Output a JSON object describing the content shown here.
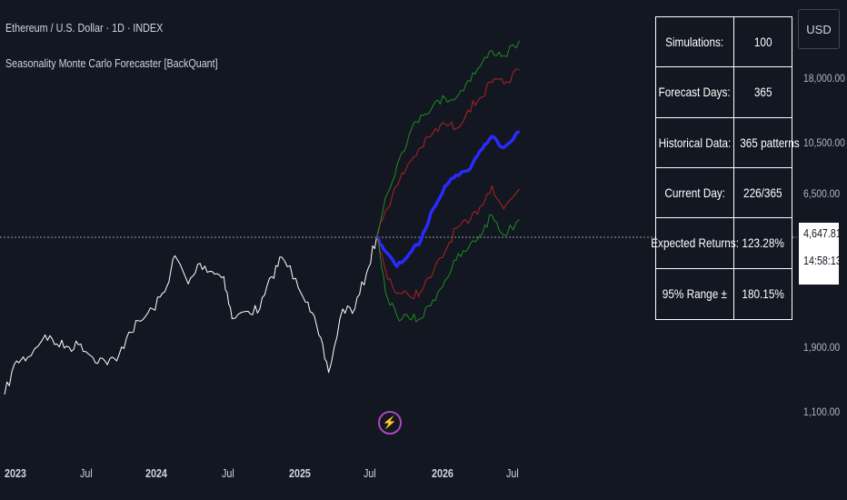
{
  "title": "Ethereum / U.S. Dollar · 1D · INDEX",
  "subtitle": "Seasonality Monte Carlo Forecaster [BackQuant]",
  "currency": "USD",
  "price_axis_labels": [
    "18,000.00",
    "10,500.00",
    "6,500.00",
    "1,900.00",
    "1,100.00"
  ],
  "current_price": {
    "value": "4,647.81",
    "countdown": "14:58:13"
  },
  "time_axis_labels": [
    {
      "text": "2023",
      "bold": true
    },
    {
      "text": "Jul",
      "bold": false
    },
    {
      "text": "2024",
      "bold": true
    },
    {
      "text": "Jul",
      "bold": false
    },
    {
      "text": "2025",
      "bold": true
    },
    {
      "text": "Jul",
      "bold": false
    },
    {
      "text": "2026",
      "bold": true
    },
    {
      "text": "Jul",
      "bold": false
    }
  ],
  "stats_table": [
    {
      "key": "Simulations:",
      "value": "100"
    },
    {
      "key": "Forecast Days:",
      "value": "365"
    },
    {
      "key": "Historical Data:",
      "value": "365 patterns"
    },
    {
      "key": "Current Day:",
      "value": "226/365"
    },
    {
      "key": "Expected Returns:",
      "value": "123.28%"
    },
    {
      "key": "95% Range ±",
      "value": "180.15%"
    }
  ],
  "event_icon": "lightning-icon",
  "colors": {
    "background": "#131722",
    "history": "#ffffff",
    "forecast_mean": "#2a2aff",
    "forecast_inner": "#b22222",
    "forecast_outer": "#1e8c1e",
    "event": "#ab47bc"
  },
  "chart_data": {
    "type": "line",
    "y_scale": "log",
    "ylim": [
      900,
      26000
    ],
    "series": [
      {
        "role": "history",
        "x": [
          "2023-01-01",
          "2023-02-01",
          "2023-03-01",
          "2023-04-15",
          "2023-05-15",
          "2023-06-15",
          "2023-07-15",
          "2023-08-15",
          "2023-09-15",
          "2023-10-15",
          "2023-11-15",
          "2023-12-15",
          "2024-01-15",
          "2024-02-15",
          "2024-03-12",
          "2024-04-15",
          "2024-05-15",
          "2024-06-15",
          "2024-07-15",
          "2024-08-05",
          "2024-09-15",
          "2024-10-15",
          "2024-11-15",
          "2024-12-10",
          "2025-01-15",
          "2025-02-15",
          "2025-03-15",
          "2025-04-09",
          "2025-05-15",
          "2025-06-15",
          "2025-07-15",
          "2025-08-10"
        ],
        "y": [
          1200,
          1600,
          1650,
          2000,
          1850,
          1800,
          1850,
          1650,
          1600,
          1600,
          2050,
          2250,
          2500,
          2900,
          3950,
          3100,
          3700,
          3450,
          3300,
          2300,
          2450,
          2500,
          3300,
          3900,
          3250,
          2650,
          2000,
          1450,
          2500,
          2500,
          3400,
          4647
        ]
      },
      {
        "role": "forecast-mean",
        "x": [
          "2025-08-10",
          "2025-09-01",
          "2025-10-01",
          "2025-11-01",
          "2025-12-01",
          "2026-01-01",
          "2026-02-01",
          "2026-03-01",
          "2026-04-01",
          "2026-05-01",
          "2026-06-01",
          "2026-07-01",
          "2026-08-10"
        ],
        "y": [
          4647,
          4100,
          3600,
          4000,
          4500,
          5900,
          7200,
          7900,
          8200,
          9700,
          11000,
          10000,
          11500
        ]
      },
      {
        "role": "forecast-upper-inner",
        "x": [
          "2025-08-10",
          "2025-09-01",
          "2025-10-01",
          "2025-11-01",
          "2025-12-01",
          "2026-01-01",
          "2026-02-01",
          "2026-03-01",
          "2026-04-01",
          "2026-05-01",
          "2026-06-01",
          "2026-07-01",
          "2026-08-10"
        ],
        "y": [
          4647,
          5800,
          7200,
          8800,
          10000,
          11300,
          12300,
          11800,
          13800,
          15300,
          17500,
          17300,
          19500
        ]
      },
      {
        "role": "forecast-lower-inner",
        "x": [
          "2025-08-10",
          "2025-09-01",
          "2025-10-01",
          "2025-11-01",
          "2025-12-01",
          "2026-01-01",
          "2026-02-01",
          "2026-03-01",
          "2026-04-01",
          "2026-05-01",
          "2026-06-01",
          "2026-07-01",
          "2026-08-10"
        ],
        "y": [
          4647,
          3500,
          2850,
          2800,
          2900,
          3400,
          4100,
          5000,
          5200,
          6000,
          7200,
          5900,
          7000
        ]
      },
      {
        "role": "forecast-upper-outer",
        "x": [
          "2025-08-10",
          "2025-09-01",
          "2025-10-01",
          "2025-11-01",
          "2025-12-01",
          "2026-01-01",
          "2026-02-01",
          "2026-03-01",
          "2026-04-01",
          "2026-05-01",
          "2026-06-01",
          "2026-07-01",
          "2026-08-10"
        ],
        "y": [
          4647,
          6500,
          8600,
          11200,
          13200,
          14300,
          15300,
          15300,
          17800,
          20000,
          23000,
          22000,
          25000
        ]
      },
      {
        "role": "forecast-lower-outer",
        "x": [
          "2025-08-10",
          "2025-09-01",
          "2025-10-01",
          "2025-11-01",
          "2025-12-01",
          "2026-01-01",
          "2026-02-01",
          "2026-03-01",
          "2026-04-01",
          "2026-05-01",
          "2026-06-01",
          "2026-07-01",
          "2026-08-10"
        ],
        "y": [
          4647,
          2900,
          2350,
          2300,
          2300,
          2700,
          3200,
          3800,
          4200,
          4700,
          5600,
          4700,
          5400
        ]
      }
    ]
  }
}
